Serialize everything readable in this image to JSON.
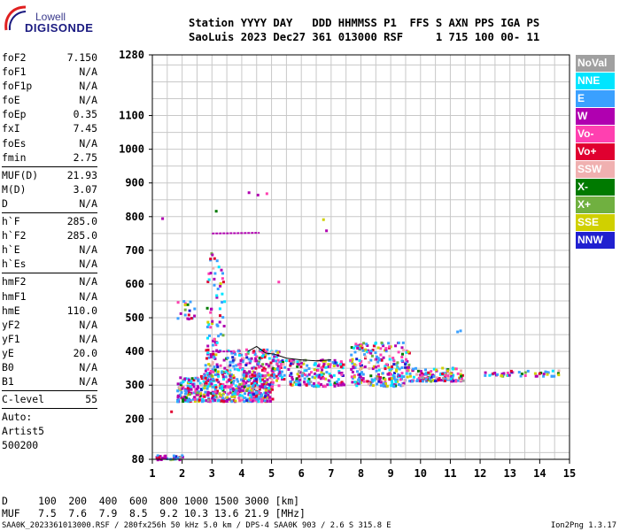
{
  "logo": {
    "top": "Lowell",
    "bottom": "DIGISONDE"
  },
  "header": {
    "line1": "Station YYYY DAY   DDD HHMMSS P1  FFS S AXN PPS IGA PS",
    "line2": "SaoLuis 2023 Dec27 361 013000 RSF     1 715 100 00- 11"
  },
  "params": {
    "group1": [
      {
        "name": "foF2",
        "value": "7.150"
      },
      {
        "name": "foF1",
        "value": "N/A"
      },
      {
        "name": "foF1p",
        "value": "N/A"
      },
      {
        "name": "foE",
        "value": "N/A"
      },
      {
        "name": "foEp",
        "value": "0.35"
      },
      {
        "name": "fxI",
        "value": "7.45"
      },
      {
        "name": "foEs",
        "value": "N/A"
      },
      {
        "name": "fmin",
        "value": "2.75"
      }
    ],
    "group2": [
      {
        "name": "MUF(D)",
        "value": "21.93"
      },
      {
        "name": "M(D)",
        "value": "3.07"
      },
      {
        "name": "D",
        "value": "N/A"
      }
    ],
    "group3": [
      {
        "name": "h`F",
        "value": "285.0"
      },
      {
        "name": "h`F2",
        "value": "285.0"
      },
      {
        "name": "h`E",
        "value": "N/A"
      },
      {
        "name": "h`Es",
        "value": "N/A"
      }
    ],
    "group4": [
      {
        "name": "hmF2",
        "value": "N/A"
      },
      {
        "name": "hmF1",
        "value": "N/A"
      },
      {
        "name": "hmE",
        "value": "110.0"
      },
      {
        "name": "yF2",
        "value": "N/A"
      },
      {
        "name": "yF1",
        "value": "N/A"
      },
      {
        "name": "yE",
        "value": "20.0"
      },
      {
        "name": "B0",
        "value": "N/A"
      },
      {
        "name": "B1",
        "value": "N/A"
      }
    ],
    "group5": [
      {
        "name": "C-level",
        "value": "55"
      }
    ],
    "notes": [
      "Auto:",
      "Artist5",
      "500200"
    ]
  },
  "legend": [
    {
      "label": "NoVal",
      "color": "#a0a0a0"
    },
    {
      "label": "NNE",
      "color": "#00e5ff"
    },
    {
      "label": "E",
      "color": "#3aa0ff"
    },
    {
      "label": "W",
      "color": "#b000b0"
    },
    {
      "label": "Vo-",
      "color": "#ff40b0"
    },
    {
      "label": "Vo+",
      "color": "#e00030"
    },
    {
      "label": "SSW",
      "color": "#f0b0b0"
    },
    {
      "label": "X-",
      "color": "#007a00"
    },
    {
      "label": "X+",
      "color": "#70b040"
    },
    {
      "label": "SSE",
      "color": "#d0d000"
    },
    {
      "label": "NNW",
      "color": "#2020d0"
    }
  ],
  "footer": {
    "d_line": "D     100  200  400  600  800 1000 1500 3000 [km]",
    "muf_line": "MUF   7.5  7.6  7.9  8.5  9.2 10.3 13.6 21.9 [MHz]",
    "file_line": "SAA0K_2023361013000.RSF / 280fx256h 50 kHz 5.0 km / DPS-4 SAA0K 903 / 2.6 S 315.8 E",
    "version": "Ion2Png 1.3.17"
  },
  "chart_data": {
    "type": "scatter",
    "xlim": [
      1,
      15
    ],
    "ylim": [
      80,
      1280
    ],
    "x_ticks": [
      "1",
      "2",
      "3",
      "4",
      "5",
      "6",
      "7",
      "8",
      "9",
      "10",
      "11",
      "12",
      "13",
      "14",
      "15"
    ],
    "y_ticks": [
      "80",
      "200",
      "300",
      "400",
      "500",
      "600",
      "700",
      "800",
      "900",
      "1000",
      "1100",
      "1280"
    ],
    "y_tick_values": [
      80,
      200,
      300,
      400,
      500,
      600,
      700,
      800,
      900,
      1000,
      1100,
      1280
    ],
    "grid": true,
    "legend_position": "right",
    "regions": [
      {
        "x": [
          1.8,
          5.0
        ],
        "y": [
          255,
          330
        ],
        "n": 520
      },
      {
        "x": [
          2.7,
          5.3
        ],
        "y": [
          330,
          410
        ],
        "n": 240
      },
      {
        "x": [
          5.0,
          7.4
        ],
        "y": [
          300,
          380
        ],
        "n": 200
      },
      {
        "x": [
          7.6,
          9.6
        ],
        "y": [
          300,
          430
        ],
        "n": 260
      },
      {
        "x": [
          9.6,
          11.4
        ],
        "y": [
          315,
          355
        ],
        "n": 130
      },
      {
        "x": [
          12.1,
          14.6
        ],
        "y": [
          330,
          348
        ],
        "n": 45
      },
      {
        "x": [
          1.1,
          2.0
        ],
        "y": [
          82,
          95
        ],
        "n": 35
      },
      {
        "x": [
          2.8,
          3.4
        ],
        "y": [
          420,
          700
        ],
        "n": 60
      },
      {
        "x": [
          1.8,
          2.4
        ],
        "y": [
          500,
          560
        ],
        "n": 18
      }
    ],
    "line_segments": [
      {
        "x": [
          3.0,
          3.7
        ],
        "y": [
          400,
          400
        ]
      },
      {
        "x": [
          3.0,
          4.6
        ],
        "y": [
          750,
          752
        ]
      }
    ],
    "trace": {
      "x": [
        4.2,
        4.5,
        4.8,
        5.1,
        5.5,
        6.0,
        6.5,
        7.0
      ],
      "y": [
        400,
        415,
        395,
        392,
        380,
        375,
        372,
        375
      ]
    },
    "outliers": {
      "x": [
        1.3,
        4.5,
        4.8,
        6.7,
        6.8,
        11.3,
        11.2,
        1.6,
        4.2,
        3.1,
        5.2
      ],
      "y": [
        798,
        868,
        872,
        795,
        762,
        465,
        462,
        225,
        875,
        820,
        610
      ]
    }
  }
}
